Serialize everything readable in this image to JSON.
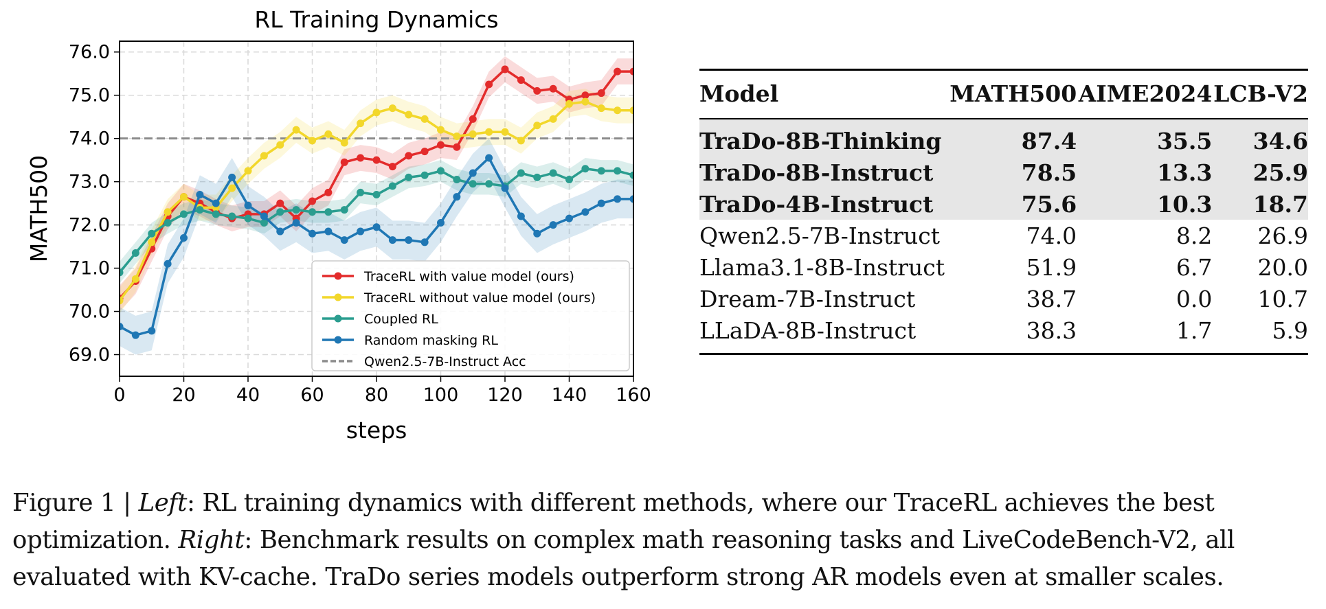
{
  "chart_data": {
    "type": "line",
    "title": "RL Training Dynamics",
    "xlabel": "steps",
    "ylabel": "MATH500",
    "xlim": [
      0,
      160
    ],
    "ylim": [
      68.5,
      76.25
    ],
    "xticks": [
      "0",
      "20",
      "40",
      "60",
      "80",
      "100",
      "120",
      "140",
      "160"
    ],
    "yticks": [
      "69.0",
      "70.0",
      "71.0",
      "72.0",
      "73.0",
      "74.0",
      "75.0",
      "76.0"
    ],
    "grid": true,
    "legend_position": "lower-right",
    "reference_line": {
      "name": "Qwen2.5-7B-Instruct Acc",
      "y": 74.0,
      "color": "#8c8c8c"
    },
    "series": [
      {
        "name": "TraceRL with value model (ours)",
        "color": "#e32b2b",
        "x": [
          0,
          5,
          10,
          15,
          20,
          25,
          30,
          35,
          40,
          45,
          50,
          55,
          60,
          65,
          70,
          75,
          80,
          85,
          90,
          95,
          100,
          105,
          110,
          115,
          120,
          125,
          130,
          135,
          140,
          145,
          150,
          155,
          160
        ],
        "y": [
          70.3,
          70.7,
          71.45,
          72.2,
          72.65,
          72.5,
          72.3,
          72.15,
          72.25,
          72.25,
          72.5,
          72.15,
          72.55,
          72.75,
          73.45,
          73.55,
          73.5,
          73.35,
          73.6,
          73.7,
          73.85,
          73.8,
          74.45,
          75.25,
          75.6,
          75.35,
          75.1,
          75.15,
          74.9,
          75.0,
          75.05,
          75.55,
          75.55
        ],
        "band": 0.3
      },
      {
        "name": "TraceRL without value model (ours)",
        "color": "#f2d72b",
        "x": [
          0,
          5,
          10,
          15,
          20,
          25,
          30,
          35,
          40,
          45,
          50,
          55,
          60,
          65,
          70,
          75,
          80,
          85,
          90,
          95,
          100,
          105,
          110,
          115,
          120,
          125,
          130,
          135,
          140,
          145,
          150,
          155,
          160
        ],
        "y": [
          70.25,
          70.75,
          71.6,
          72.3,
          72.65,
          72.4,
          72.4,
          72.85,
          73.25,
          73.6,
          73.85,
          74.2,
          73.95,
          74.1,
          73.9,
          74.35,
          74.6,
          74.7,
          74.55,
          74.45,
          74.2,
          74.05,
          74.1,
          74.15,
          74.15,
          73.95,
          74.3,
          74.45,
          74.8,
          74.85,
          74.7,
          74.65,
          74.65
        ],
        "band": 0.3
      },
      {
        "name": "Coupled RL",
        "color": "#2a9d8f",
        "x": [
          0,
          5,
          10,
          15,
          20,
          25,
          30,
          35,
          40,
          45,
          50,
          55,
          60,
          65,
          70,
          75,
          80,
          85,
          90,
          95,
          100,
          105,
          110,
          115,
          120,
          125,
          130,
          135,
          140,
          145,
          150,
          155,
          160
        ],
        "y": [
          70.9,
          71.35,
          71.8,
          72.05,
          72.25,
          72.35,
          72.25,
          72.2,
          72.15,
          72.05,
          72.3,
          72.35,
          72.3,
          72.3,
          72.35,
          72.75,
          72.7,
          72.9,
          73.1,
          73.15,
          73.25,
          73.05,
          72.95,
          72.95,
          72.9,
          73.2,
          73.1,
          73.2,
          73.05,
          73.3,
          73.25,
          73.25,
          73.15
        ],
        "band": 0.25
      },
      {
        "name": "Random masking RL",
        "color": "#1f77b4",
        "x": [
          0,
          5,
          10,
          15,
          20,
          25,
          30,
          35,
          40,
          45,
          50,
          55,
          60,
          65,
          70,
          75,
          80,
          85,
          90,
          95,
          100,
          105,
          110,
          115,
          120,
          125,
          130,
          135,
          140,
          145,
          150,
          155,
          160
        ],
        "y": [
          69.65,
          69.45,
          69.55,
          71.1,
          71.7,
          72.7,
          72.5,
          73.1,
          72.45,
          72.2,
          71.85,
          72.05,
          71.8,
          71.85,
          71.65,
          71.85,
          71.95,
          71.65,
          71.65,
          71.6,
          72.05,
          72.65,
          73.2,
          73.55,
          72.85,
          72.2,
          71.8,
          72.0,
          72.15,
          72.3,
          72.5,
          72.6,
          72.6
        ],
        "band": 0.45
      }
    ]
  },
  "table": {
    "headers": [
      "Model",
      "MATH500",
      "AIME2024",
      "LCB-V2"
    ],
    "rows": [
      {
        "cells": [
          "TraDo-8B-Thinking",
          "87.4",
          "35.5",
          "34.6"
        ],
        "highlight": true
      },
      {
        "cells": [
          "TraDo-8B-Instruct",
          "78.5",
          "13.3",
          "25.9"
        ],
        "highlight": true
      },
      {
        "cells": [
          "TraDo-4B-Instruct",
          "75.6",
          "10.3",
          "18.7"
        ],
        "highlight": true
      },
      {
        "cells": [
          "Qwen2.5-7B-Instruct",
          "74.0",
          "8.2",
          "26.9"
        ],
        "highlight": false
      },
      {
        "cells": [
          "Llama3.1-8B-Instruct",
          "51.9",
          "6.7",
          "20.0"
        ],
        "highlight": false
      },
      {
        "cells": [
          "Dream-7B-Instruct",
          "38.7",
          "0.0",
          "10.7"
        ],
        "highlight": false
      },
      {
        "cells": [
          "LLaDA-8B-Instruct",
          "38.3",
          "1.7",
          "5.9"
        ],
        "highlight": false
      }
    ]
  },
  "caption": {
    "label": "Figure 1 | ",
    "left_word": "Left",
    "left_text": ": RL training dynamics with different methods, where our TraceRL achieves the best",
    "line2_pre": "optimization. ",
    "right_word": "Right",
    "right_text": ": Benchmark results on complex math reasoning tasks and LiveCodeBench-V2, all",
    "line3": "evaluated with KV-cache. TraDo series models outperform strong AR models even at smaller scales."
  }
}
